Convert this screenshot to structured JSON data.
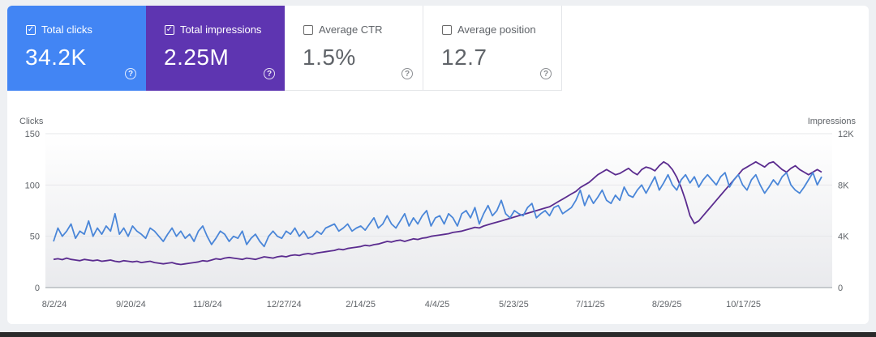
{
  "metrics": {
    "clicks": {
      "label": "Total clicks",
      "value": "34.2K",
      "checked": true
    },
    "impressions": {
      "label": "Total impressions",
      "value": "2.25M",
      "checked": true
    },
    "ctr": {
      "label": "Average CTR",
      "value": "1.5%",
      "checked": false
    },
    "position": {
      "label": "Average position",
      "value": "12.7",
      "checked": false
    },
    "checkmark": "✓",
    "help_glyph": "?"
  },
  "chart_data": {
    "type": "line",
    "ylabel_left": "Clicks",
    "ylabel_right": "Impressions",
    "y_left_ticks": [
      "150",
      "100",
      "50",
      "0"
    ],
    "y_left_range": [
      0,
      150
    ],
    "y_right_ticks": [
      "12K",
      "8K",
      "4K",
      "0"
    ],
    "y_right_range": [
      0,
      12000
    ],
    "x_ticks": [
      "8/2/24",
      "9/20/24",
      "11/8/24",
      "12/27/24",
      "2/14/25",
      "4/4/25",
      "5/23/25",
      "7/11/25",
      "8/29/25",
      "10/17/25"
    ],
    "legend": "none",
    "grid": true,
    "colors": {
      "clicks": "#4a86d8",
      "impressions": "#5b2c8f"
    },
    "series": [
      {
        "name": "Clicks",
        "axis": "left",
        "values": [
          45,
          58,
          50,
          55,
          62,
          48,
          55,
          52,
          65,
          50,
          58,
          52,
          60,
          55,
          72,
          52,
          58,
          50,
          60,
          55,
          52,
          48,
          58,
          55,
          50,
          45,
          52,
          58,
          50,
          55,
          48,
          52,
          45,
          55,
          60,
          50,
          42,
          48,
          55,
          52,
          45,
          50,
          48,
          55,
          42,
          48,
          52,
          45,
          40,
          50,
          55,
          50,
          48,
          55,
          52,
          58,
          50,
          55,
          48,
          50,
          55,
          52,
          58,
          60,
          62,
          55,
          58,
          62,
          55,
          58,
          60,
          56,
          62,
          68,
          58,
          62,
          70,
          62,
          58,
          65,
          72,
          60,
          68,
          62,
          70,
          75,
          60,
          68,
          70,
          62,
          72,
          68,
          60,
          72,
          75,
          68,
          78,
          62,
          72,
          80,
          70,
          75,
          85,
          72,
          68,
          75,
          72,
          70,
          78,
          82,
          68,
          72,
          75,
          70,
          78,
          80,
          72,
          75,
          78,
          85,
          95,
          80,
          90,
          82,
          88,
          95,
          85,
          82,
          90,
          85,
          98,
          90,
          88,
          95,
          100,
          92,
          100,
          108,
          95,
          102,
          110,
          100,
          95,
          105,
          110,
          102,
          108,
          98,
          105,
          110,
          105,
          100,
          108,
          112,
          98,
          105,
          110,
          100,
          95,
          105,
          110,
          100,
          92,
          98,
          105,
          100,
          108,
          112,
          100,
          95,
          92,
          98,
          105,
          112,
          100,
          108
        ],
        "note": "approximate daily clicks, 176 samples across 8/2/24 – 11/25/25"
      },
      {
        "name": "Impressions",
        "axis": "right",
        "values": [
          2200,
          2250,
          2180,
          2300,
          2200,
          2150,
          2100,
          2200,
          2150,
          2100,
          2150,
          2050,
          2100,
          2150,
          2050,
          2000,
          2100,
          2050,
          2000,
          2050,
          1950,
          2000,
          2050,
          1950,
          1900,
          1850,
          1900,
          1950,
          1850,
          1800,
          1850,
          1900,
          1950,
          2000,
          2100,
          2050,
          2150,
          2250,
          2200,
          2300,
          2350,
          2300,
          2250,
          2200,
          2300,
          2250,
          2200,
          2300,
          2400,
          2350,
          2300,
          2400,
          2450,
          2400,
          2500,
          2550,
          2500,
          2600,
          2650,
          2600,
          2700,
          2750,
          2800,
          2850,
          2900,
          3000,
          2950,
          3050,
          3100,
          3150,
          3200,
          3300,
          3250,
          3350,
          3400,
          3500,
          3600,
          3550,
          3650,
          3700,
          3600,
          3700,
          3800,
          3750,
          3850,
          3900,
          4000,
          4050,
          4100,
          4150,
          4200,
          4300,
          4350,
          4400,
          4500,
          4600,
          4700,
          4650,
          4800,
          4900,
          5000,
          5100,
          5200,
          5300,
          5400,
          5500,
          5600,
          5700,
          5800,
          5900,
          6000,
          6100,
          6200,
          6300,
          6500,
          6700,
          6900,
          7100,
          7300,
          7500,
          7800,
          8000,
          8200,
          8500,
          8800,
          9000,
          9200,
          9000,
          8800,
          8900,
          9100,
          9300,
          9000,
          8800,
          9200,
          9400,
          9300,
          9100,
          9500,
          9800,
          9600,
          9200,
          8600,
          7800,
          6800,
          5600,
          5000,
          5200,
          5600,
          6000,
          6400,
          6800,
          7200,
          7600,
          8000,
          8400,
          8800,
          9200,
          9400,
          9600,
          9800,
          9600,
          9400,
          9700,
          9800,
          9500,
          9200,
          9000,
          9300,
          9500,
          9200,
          9000,
          8800,
          9000,
          9200,
          9000
        ],
        "note": "approximate daily impressions, 176 samples across 8/2/24 – 11/25/25"
      }
    ]
  }
}
